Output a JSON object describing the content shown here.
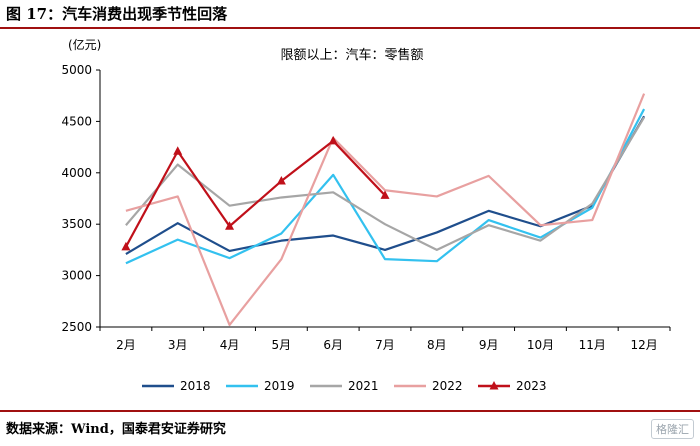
{
  "figure": {
    "title": "图 17：汽车消费出现季节性回落",
    "source": "数据来源：Wind，国泰君安证券研究",
    "watermark": "格隆汇"
  },
  "chart_data": {
    "type": "line",
    "title": "限额以上：汽车：零售额",
    "ylabel": "(亿元)",
    "xlabel": "",
    "categories": [
      "2月",
      "3月",
      "4月",
      "5月",
      "6月",
      "7月",
      "8月",
      "9月",
      "10月",
      "11月",
      "12月"
    ],
    "ylim": [
      2500,
      5000
    ],
    "yticks": [
      2500,
      3000,
      3500,
      4000,
      4500,
      5000
    ],
    "grid": false,
    "legend_position": "bottom",
    "series": [
      {
        "name": "2018",
        "color": "#1f4e8c",
        "marker": "none",
        "values": [
          3210,
          3510,
          3240,
          3340,
          3390,
          3250,
          3420,
          3630,
          3480,
          3680,
          4550
        ]
      },
      {
        "name": "2019",
        "color": "#33c1ef",
        "marker": "none",
        "values": [
          3120,
          3350,
          3170,
          3410,
          3980,
          3160,
          3140,
          3540,
          3370,
          3660,
          4620
        ]
      },
      {
        "name": "2021",
        "color": "#a6a6a6",
        "marker": "none",
        "values": [
          3490,
          4080,
          3680,
          3760,
          3810,
          3500,
          3250,
          3490,
          3340,
          3700,
          4540
        ]
      },
      {
        "name": "2022",
        "color": "#e8a0a0",
        "marker": "none",
        "values": [
          3630,
          3770,
          2520,
          3160,
          4340,
          3830,
          3770,
          3970,
          3490,
          3540,
          4770
        ]
      },
      {
        "name": "2023",
        "color": "#c0101a",
        "marker": "triangle",
        "values": [
          3280,
          4210,
          3480,
          3920,
          4310,
          3780,
          null,
          null,
          null,
          null,
          null
        ]
      }
    ]
  }
}
